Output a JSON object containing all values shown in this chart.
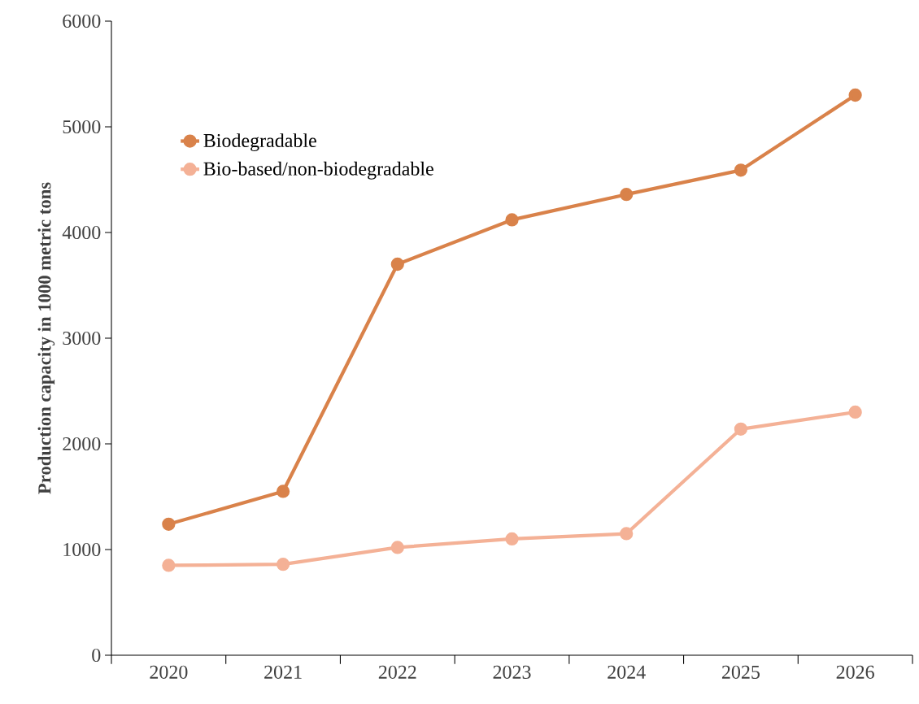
{
  "chart_data": {
    "type": "line",
    "ylabel": "Production capacity in 1000 metric tons",
    "categories": [
      "2020",
      "2021",
      "2022",
      "2023",
      "2024",
      "2025",
      "2026"
    ],
    "series": [
      {
        "name": "Biodegradable",
        "color": "#d9824a",
        "values": [
          1240,
          1550,
          3700,
          4120,
          4360,
          4590,
          5300
        ]
      },
      {
        "name": "Bio-based/non-biodegradable",
        "color": "#f4b196",
        "values": [
          850,
          860,
          1020,
          1100,
          1150,
          2140,
          2300
        ]
      }
    ],
    "ylim": [
      0,
      6000
    ],
    "yticks": [
      0,
      1000,
      2000,
      3000,
      4000,
      5000,
      6000
    ],
    "grid": false,
    "legend": "top left",
    "marker": "circle",
    "line_style": "solid"
  }
}
